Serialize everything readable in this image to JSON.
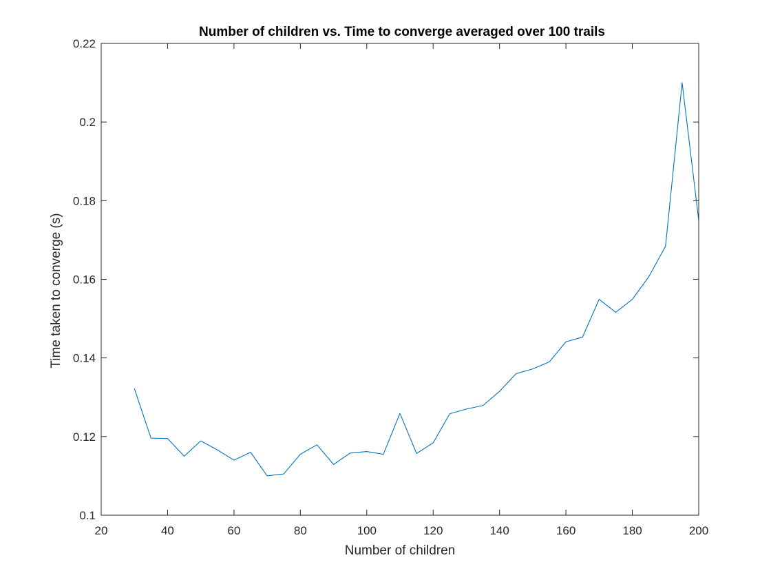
{
  "chart_data": {
    "type": "line",
    "title": "Number of children vs. Time to converge averaged over 100 trails",
    "xlabel": "Number of children",
    "ylabel": "Time taken to converge (s)",
    "xlim": [
      20,
      200
    ],
    "ylim": [
      0.1,
      0.22
    ],
    "xticks": [
      20,
      40,
      60,
      80,
      100,
      120,
      140,
      160,
      180,
      200
    ],
    "xtick_labels": [
      "20",
      "40",
      "60",
      "80",
      "100",
      "120",
      "140",
      "160",
      "180",
      "200"
    ],
    "yticks": [
      0.1,
      0.12,
      0.14,
      0.16,
      0.18,
      0.2,
      0.22
    ],
    "ytick_labels": [
      "0.1",
      "0.12",
      "0.14",
      "0.16",
      "0.18",
      "0.2",
      "0.22"
    ],
    "grid": false,
    "line_color": "#0072BD",
    "axis_color": "#262626",
    "series": [
      {
        "x": [
          30,
          35,
          40,
          45,
          50,
          55,
          60,
          65,
          70,
          75,
          80,
          85,
          90,
          95,
          100,
          105,
          110,
          115,
          120,
          125,
          130,
          135,
          140,
          145,
          150,
          155,
          160,
          165,
          170,
          175,
          180,
          185,
          190,
          195,
          200
        ],
        "y": [
          0.1322,
          0.1196,
          0.1195,
          0.115,
          0.1189,
          0.1166,
          0.114,
          0.116,
          0.11,
          0.1105,
          0.1155,
          0.1179,
          0.1129,
          0.1158,
          0.1162,
          0.1155,
          0.1259,
          0.1157,
          0.1184,
          0.1258,
          0.127,
          0.1279,
          0.1315,
          0.136,
          0.1372,
          0.139,
          0.1441,
          0.1453,
          0.1549,
          0.1516,
          0.1549,
          0.1607,
          0.1684,
          0.21,
          0.175
        ]
      }
    ]
  }
}
